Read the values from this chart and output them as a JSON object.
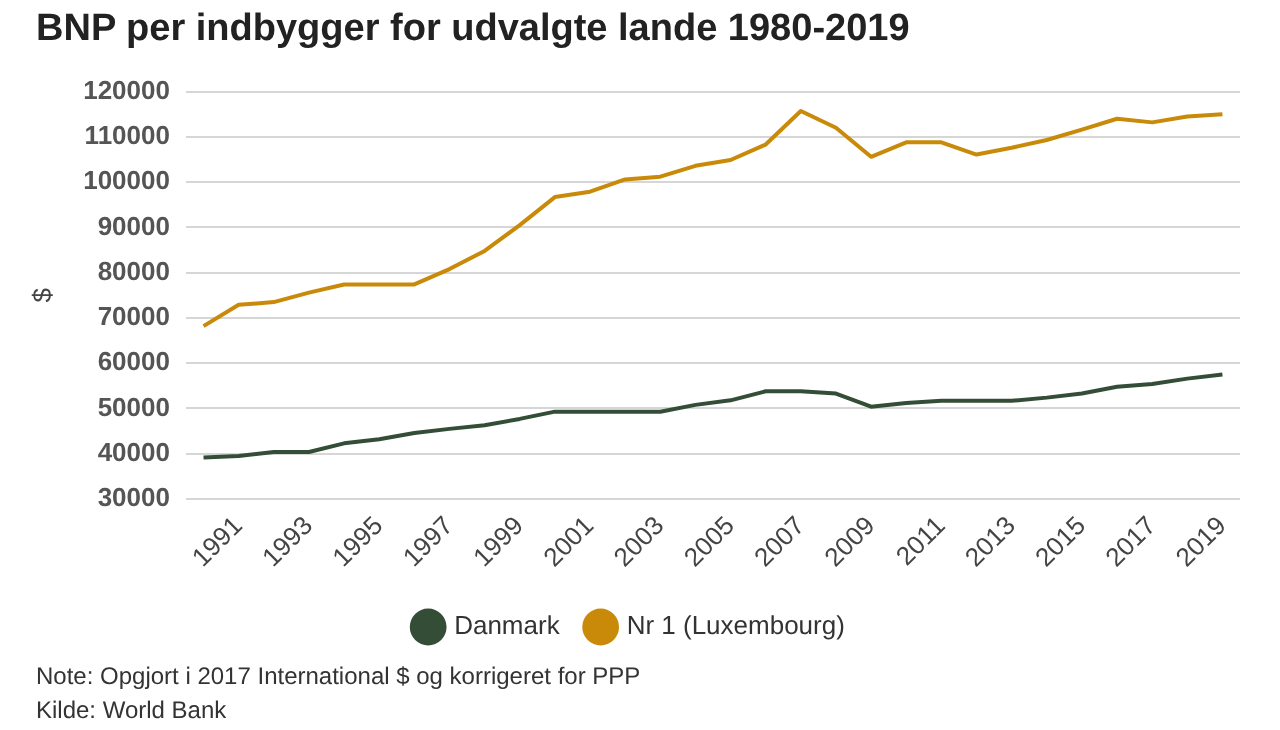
{
  "chart_data": {
    "type": "line",
    "title": "BNP per indbygger for udvalgte lande 1980-2019",
    "ylabel": "$",
    "categories": [
      null,
      "1991",
      null,
      "1993",
      null,
      "1995",
      null,
      "1997",
      null,
      "1999",
      null,
      "2001",
      null,
      "2003",
      null,
      "2005",
      null,
      "2007",
      null,
      "2009",
      null,
      "2011",
      null,
      "2013",
      null,
      "2015",
      null,
      "2017",
      null,
      "2019"
    ],
    "series": [
      {
        "name": "Danmark",
        "color": "#344d36",
        "values": [
          39200,
          39500,
          40400,
          40400,
          42300,
          43200,
          44600,
          45500,
          46300,
          47700,
          49300,
          49300,
          49300,
          49300,
          50800,
          51800,
          53800,
          53800,
          53300,
          50400,
          51200,
          51700,
          51700,
          51700,
          52400,
          53300,
          54800,
          55400,
          56600,
          57500
        ]
      },
      {
        "name": "Nr 1 (Luxembourg)",
        "color": "#c98a0a",
        "values": [
          68200,
          72900,
          73500,
          75600,
          77400,
          77400,
          77400,
          80800,
          84800,
          90500,
          96700,
          97900,
          100600,
          101200,
          103600,
          104900,
          108300,
          115700,
          112000,
          105600,
          108800,
          108800,
          106100,
          107600,
          109300,
          111600,
          114000,
          113200,
          114500,
          115000
        ]
      }
    ],
    "ylim": [
      30000,
      120000
    ],
    "yticks": [
      30000,
      40000,
      50000,
      60000,
      70000,
      80000,
      90000,
      100000,
      110000,
      120000
    ],
    "grid": "y",
    "legend": "bottom",
    "marker": "none",
    "line_style": "solid",
    "annotations": [
      "Note: Opgjort i 2017 International $ og korrigeret for PPP",
      "Kilde: World Bank"
    ]
  }
}
